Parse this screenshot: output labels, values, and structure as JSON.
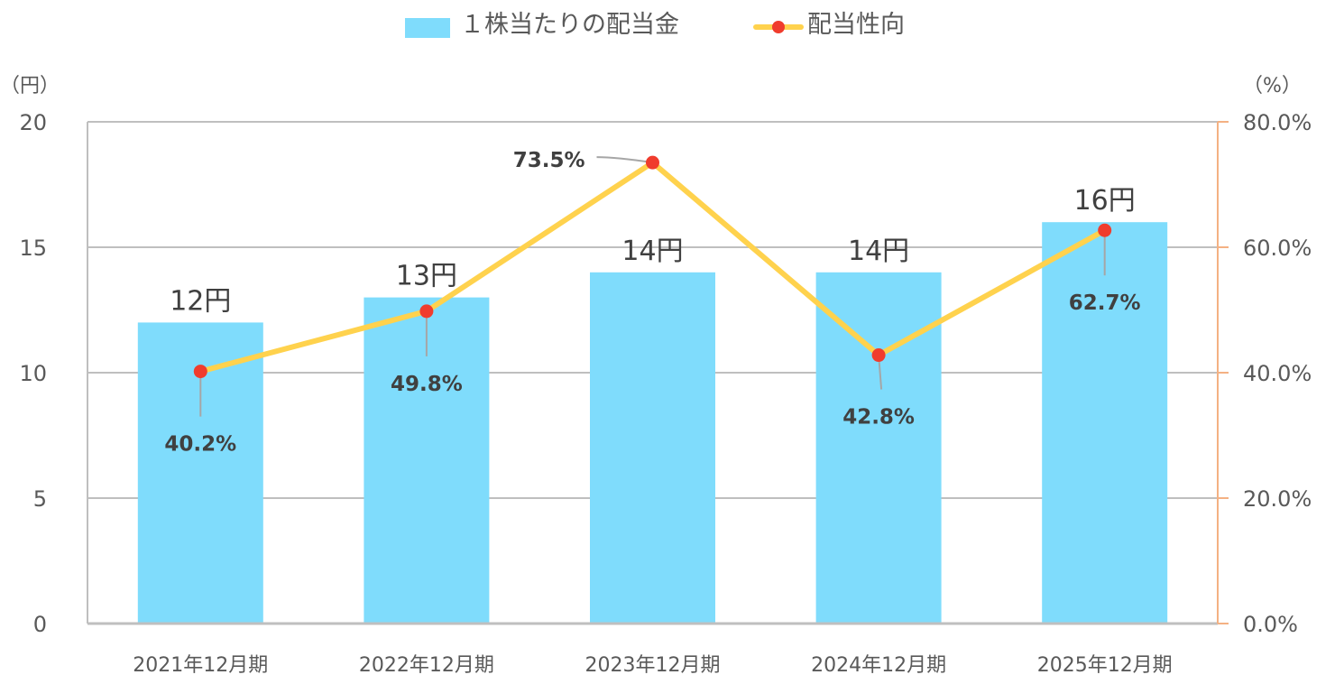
{
  "legend": {
    "bar_label": "１株当たりの配当金",
    "line_label": "配当性向"
  },
  "axes": {
    "left_unit": "（円）",
    "right_unit": "（%）",
    "left_ticks": [
      "0",
      "5",
      "10",
      "15",
      "20"
    ],
    "right_ticks": [
      "0.0%",
      "20.0%",
      "40.0%",
      "60.0%",
      "80.0%"
    ]
  },
  "colors": {
    "bar": "#7fdcfc",
    "line": "#ffd24d",
    "marker": "#f03c2d",
    "grid": "#bfbfbf",
    "right_axis": "#f4b183"
  },
  "chart_data": {
    "type": "bar",
    "combo": "bar+line (dual axis)",
    "categories": [
      "2021年12月期",
      "2022年12月期",
      "2023年12月期",
      "2024年12月期",
      "2025年12月期"
    ],
    "series": [
      {
        "name": "１株当たりの配当金",
        "type": "bar",
        "axis": "left",
        "values": [
          12,
          13,
          14,
          14,
          16
        ],
        "labels": [
          "12円",
          "13円",
          "14円",
          "14円",
          "16円"
        ]
      },
      {
        "name": "配当性向",
        "type": "line",
        "axis": "right",
        "values": [
          40.2,
          49.8,
          73.5,
          42.8,
          62.7
        ],
        "labels": [
          "40.2%",
          "49.8%",
          "73.5%",
          "42.8%",
          "62.7%"
        ]
      }
    ],
    "title": "",
    "xlabel": "",
    "ylabel": "（円）",
    "y2label": "（%）",
    "ylim": [
      0,
      20
    ],
    "y2lim": [
      0,
      80
    ],
    "grid": true,
    "legend_position": "top"
  }
}
